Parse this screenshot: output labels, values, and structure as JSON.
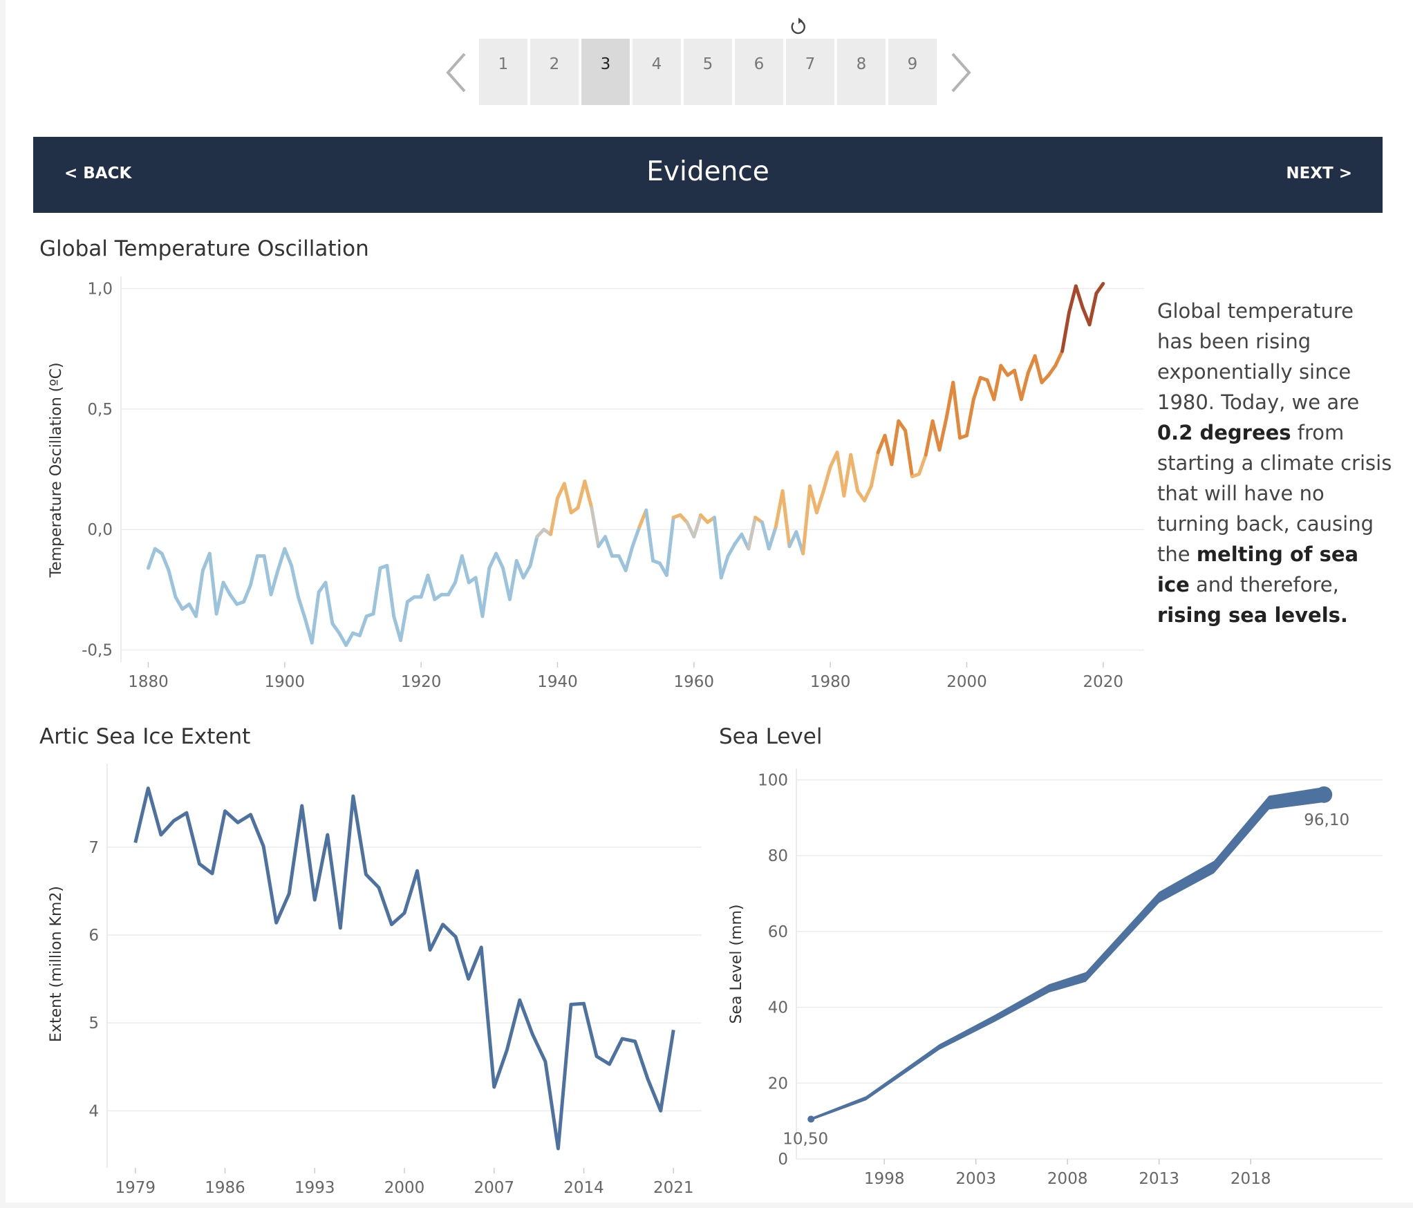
{
  "pager": {
    "tabs": [
      "1",
      "2",
      "3",
      "4",
      "5",
      "6",
      "7",
      "8",
      "9"
    ],
    "active_index": 2
  },
  "header": {
    "back_label": "< BACK",
    "title": "Evidence",
    "next_label": "NEXT >"
  },
  "temperature": {
    "title": "Global Temperature Oscillation",
    "description": {
      "t1": "Global temperature has been rising exponentially since 1980. Today, we are ",
      "b1": "0.2 degrees",
      "t2": " from starting a climate crisis that will have no turning back, causing the ",
      "b2": "melting of sea ice",
      "t3": " and therefore, ",
      "b3": "rising sea levels."
    },
    "colors": {
      "cool": "#9cc3dc",
      "neutral": "#c9c6bd",
      "warm": "#efb36a",
      "hot": "#e2883a",
      "hottest": "#a8482a"
    }
  },
  "ice": {
    "title": "Artic Sea Ice Extent",
    "color": "#4e72a0"
  },
  "sea": {
    "title": "Sea Level",
    "color": "#4e72a0",
    "start_label": "10,50",
    "end_label": "96,10"
  },
  "chart_data": [
    {
      "type": "line",
      "ylabel": "Temperature Oscillation (ºC)",
      "xlabel": "",
      "x_ticks": [
        1880,
        1900,
        1920,
        1940,
        1960,
        1980,
        2000,
        2020
      ],
      "y_ticks": [
        "1,0",
        "0,5",
        "0,0",
        "-0,5"
      ],
      "y_tick_values": [
        1.0,
        0.5,
        0.0,
        -0.5
      ],
      "xlim": [
        1876,
        2026
      ],
      "ylim": [
        -0.55,
        1.05
      ],
      "x": [
        1880,
        1881,
        1882,
        1883,
        1884,
        1885,
        1886,
        1887,
        1888,
        1889,
        1890,
        1891,
        1892,
        1893,
        1894,
        1895,
        1896,
        1897,
        1898,
        1899,
        1900,
        1901,
        1902,
        1903,
        1904,
        1905,
        1906,
        1907,
        1908,
        1909,
        1910,
        1911,
        1912,
        1913,
        1914,
        1915,
        1916,
        1917,
        1918,
        1919,
        1920,
        1921,
        1922,
        1923,
        1924,
        1925,
        1926,
        1927,
        1928,
        1929,
        1930,
        1931,
        1932,
        1933,
        1934,
        1935,
        1936,
        1937,
        1938,
        1939,
        1940,
        1941,
        1942,
        1943,
        1944,
        1945,
        1946,
        1947,
        1948,
        1949,
        1950,
        1951,
        1952,
        1953,
        1954,
        1955,
        1956,
        1957,
        1958,
        1959,
        1960,
        1961,
        1962,
        1963,
        1964,
        1965,
        1966,
        1967,
        1968,
        1969,
        1970,
        1971,
        1972,
        1973,
        1974,
        1975,
        1976,
        1977,
        1978,
        1979,
        1980,
        1981,
        1982,
        1983,
        1984,
        1985,
        1986,
        1987,
        1988,
        1989,
        1990,
        1991,
        1992,
        1993,
        1994,
        1995,
        1996,
        1997,
        1998,
        1999,
        2000,
        2001,
        2002,
        2003,
        2004,
        2005,
        2006,
        2007,
        2008,
        2009,
        2010,
        2011,
        2012,
        2013,
        2014,
        2015,
        2016,
        2017,
        2018,
        2019,
        2020
      ],
      "values": [
        -0.16,
        -0.08,
        -0.1,
        -0.17,
        -0.28,
        -0.33,
        -0.31,
        -0.36,
        -0.17,
        -0.1,
        -0.35,
        -0.22,
        -0.27,
        -0.31,
        -0.3,
        -0.23,
        -0.11,
        -0.11,
        -0.27,
        -0.17,
        -0.08,
        -0.15,
        -0.28,
        -0.37,
        -0.47,
        -0.26,
        -0.22,
        -0.39,
        -0.43,
        -0.48,
        -0.43,
        -0.44,
        -0.36,
        -0.35,
        -0.16,
        -0.15,
        -0.36,
        -0.46,
        -0.3,
        -0.28,
        -0.28,
        -0.19,
        -0.29,
        -0.27,
        -0.27,
        -0.22,
        -0.11,
        -0.22,
        -0.2,
        -0.36,
        -0.16,
        -0.1,
        -0.16,
        -0.29,
        -0.13,
        -0.2,
        -0.15,
        -0.03,
        0.0,
        -0.02,
        0.13,
        0.19,
        0.07,
        0.09,
        0.2,
        0.09,
        -0.07,
        -0.03,
        -0.11,
        -0.11,
        -0.17,
        -0.07,
        0.01,
        0.08,
        -0.13,
        -0.14,
        -0.19,
        0.05,
        0.06,
        0.03,
        -0.03,
        0.06,
        0.03,
        0.05,
        -0.2,
        -0.11,
        -0.06,
        -0.02,
        -0.08,
        0.05,
        0.03,
        -0.08,
        0.01,
        0.16,
        -0.07,
        -0.01,
        -0.1,
        0.18,
        0.07,
        0.16,
        0.26,
        0.32,
        0.14,
        0.31,
        0.16,
        0.12,
        0.18,
        0.32,
        0.39,
        0.27,
        0.45,
        0.41,
        0.22,
        0.23,
        0.31,
        0.45,
        0.33,
        0.46,
        0.61,
        0.38,
        0.39,
        0.54,
        0.63,
        0.62,
        0.54,
        0.68,
        0.64,
        0.66,
        0.54,
        0.65,
        0.72,
        0.61,
        0.64,
        0.68,
        0.74,
        0.9,
        1.01,
        0.92,
        0.85,
        0.98,
        1.02
      ]
    },
    {
      "type": "line",
      "ylabel": "Extent (million Km2)",
      "xlabel": "",
      "x_ticks": [
        1979,
        1986,
        1993,
        2000,
        2007,
        2014,
        2021
      ],
      "y_ticks": [
        7,
        6,
        5,
        4
      ],
      "xlim": [
        1976.8,
        1923.2
      ],
      "ylim": [
        3.35,
        7.95
      ],
      "x": [
        1979,
        1980,
        1981,
        1982,
        1983,
        1984,
        1985,
        1986,
        1987,
        1988,
        1989,
        1990,
        1991,
        1992,
        1993,
        1994,
        1995,
        1996,
        1997,
        1998,
        1999,
        2000,
        2001,
        2002,
        2003,
        2004,
        2005,
        2006,
        2007,
        2008,
        2009,
        2010,
        2011,
        2012,
        2013,
        2014,
        2015,
        2016,
        2017,
        2018,
        2019,
        2020,
        2021
      ],
      "values": [
        7.05,
        7.67,
        7.14,
        7.3,
        7.39,
        6.81,
        6.7,
        7.41,
        7.28,
        7.37,
        7.01,
        6.14,
        6.47,
        7.47,
        6.4,
        7.14,
        6.08,
        7.58,
        6.69,
        6.54,
        6.12,
        6.25,
        6.73,
        5.83,
        6.12,
        5.98,
        5.5,
        5.86,
        4.27,
        4.69,
        5.26,
        4.87,
        4.56,
        3.57,
        5.21,
        5.22,
        4.62,
        4.53,
        4.82,
        4.79,
        4.36,
        4.0,
        4.92
      ]
    },
    {
      "type": "line",
      "ylabel": "Sea Level (mm)",
      "xlabel": "",
      "x_ticks": [
        1998,
        2003,
        2008,
        2013,
        2018
      ],
      "y_ticks": [
        100,
        80,
        60,
        40,
        20,
        0
      ],
      "xlim": [
        1993.2,
        2025.2
      ],
      "ylim": [
        0,
        103
      ],
      "x": [
        1994,
        1997,
        2001,
        2004,
        2007,
        2009,
        2013,
        2016,
        2019,
        2022
      ],
      "values": [
        10.5,
        16,
        29.5,
        37,
        45,
        48,
        69,
        77,
        94,
        96.1
      ]
    }
  ]
}
